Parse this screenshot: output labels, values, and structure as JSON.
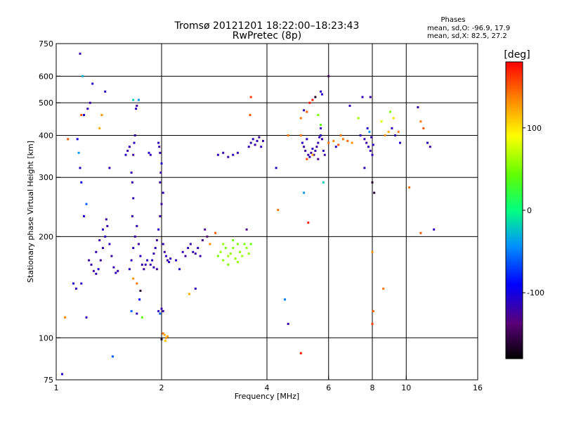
{
  "chart_data": {
    "type": "scatter",
    "title": "Tromsø 20121201 18:22:00–18:23:43",
    "subtitle": "RwPretec (8p)",
    "xlabel": "Frequency [MHz]",
    "ylabel": "Stationary phase Virtual Height [km]",
    "x_scale": "log",
    "y_scale": "log",
    "xlim": [
      1,
      16
    ],
    "ylim": [
      75,
      750
    ],
    "x_ticks": [
      1,
      2,
      4,
      6,
      8,
      10,
      16
    ],
    "x_tick_labels": [
      "1",
      "2",
      "4",
      "6",
      "8",
      "10",
      "16"
    ],
    "x_gridlines": [
      2,
      4,
      6,
      8,
      10
    ],
    "y_ticks": [
      75,
      100,
      200,
      300,
      400,
      500,
      600,
      750
    ],
    "y_tick_labels": [
      "75",
      "100",
      "200",
      "300",
      "400",
      "500",
      "600",
      "750"
    ],
    "y_gridlines": [
      100,
      200,
      300,
      400,
      500,
      600
    ],
    "grid": true,
    "stats": {
      "heading": "Phases",
      "line_o": "mean, sd,O: -96.9, 17.9",
      "line_x": "mean, sd,X:  82.5, 27.2"
    },
    "colorbar": {
      "unit": "[deg]",
      "range": [
        -180,
        180
      ],
      "ticks": [
        100,
        0,
        -100
      ],
      "tick_labels": [
        "100",
        "0",
        "-100"
      ],
      "colormap": "rainbow"
    },
    "points": [
      [
        1.24,
        170,
        -120
      ],
      [
        1.26,
        165,
        -118
      ],
      [
        1.28,
        158,
        -122
      ],
      [
        1.3,
        155,
        -115
      ],
      [
        1.32,
        160,
        -110
      ],
      [
        1.34,
        170,
        -125
      ],
      [
        1.36,
        185,
        -118
      ],
      [
        1.38,
        200,
        -112
      ],
      [
        1.4,
        215,
        -120
      ],
      [
        1.42,
        190,
        -116
      ],
      [
        1.44,
        175,
        -124
      ],
      [
        1.46,
        162,
        -119
      ],
      [
        1.48,
        156,
        -113
      ],
      [
        1.5,
        158,
        -121
      ],
      [
        1.3,
        180,
        -117
      ],
      [
        1.33,
        195,
        -123
      ],
      [
        1.36,
        210,
        -111
      ],
      [
        1.39,
        225,
        -119
      ],
      [
        1.2,
        230,
        -105
      ],
      [
        1.22,
        250,
        -60
      ],
      [
        1.18,
        290,
        -95
      ],
      [
        1.17,
        320,
        -110
      ],
      [
        1.16,
        355,
        -40
      ],
      [
        1.15,
        390,
        -100
      ],
      [
        1.2,
        460,
        -110
      ],
      [
        1.23,
        480,
        -115
      ],
      [
        1.25,
        500,
        -120
      ],
      [
        1.27,
        570,
        -108
      ],
      [
        1.19,
        600,
        -30
      ],
      [
        1.17,
        700,
        -118
      ],
      [
        1.33,
        420,
        120
      ],
      [
        1.35,
        460,
        130
      ],
      [
        1.38,
        540,
        -110
      ],
      [
        1.42,
        320,
        -115
      ],
      [
        1.12,
        145,
        -110
      ],
      [
        1.14,
        140,
        -118
      ],
      [
        1.18,
        145,
        -112
      ],
      [
        1.22,
        115,
        -115
      ],
      [
        1.45,
        88,
        -60
      ],
      [
        1.04,
        78,
        -110
      ],
      [
        1.06,
        115,
        135
      ],
      [
        1.08,
        390,
        150
      ],
      [
        1.18,
        460,
        150
      ],
      [
        1.62,
        160,
        -115
      ],
      [
        1.64,
        170,
        -118
      ],
      [
        1.66,
        185,
        -112
      ],
      [
        1.68,
        200,
        -121
      ],
      [
        1.7,
        215,
        -117
      ],
      [
        1.72,
        190,
        -125
      ],
      [
        1.74,
        175,
        -113
      ],
      [
        1.76,
        165,
        -119
      ],
      [
        1.78,
        160,
        -122
      ],
      [
        1.8,
        165,
        -116
      ],
      [
        1.82,
        170,
        -111
      ],
      [
        1.65,
        230,
        -118
      ],
      [
        1.66,
        260,
        -114
      ],
      [
        1.65,
        290,
        -120
      ],
      [
        1.64,
        310,
        -117
      ],
      [
        1.66,
        350,
        -123
      ],
      [
        1.67,
        380,
        -111
      ],
      [
        1.68,
        400,
        -119
      ],
      [
        1.69,
        480,
        -116
      ],
      [
        1.7,
        490,
        -124
      ],
      [
        1.66,
        510,
        -20
      ],
      [
        1.72,
        510,
        -40
      ],
      [
        1.62,
        370,
        -115
      ],
      [
        1.6,
        360,
        -120
      ],
      [
        1.58,
        350,
        -110
      ],
      [
        1.64,
        120,
        -60
      ],
      [
        1.7,
        118,
        -115
      ],
      [
        1.73,
        130,
        -90
      ],
      [
        1.76,
        115,
        40
      ],
      [
        1.66,
        150,
        130
      ],
      [
        1.7,
        145,
        140
      ],
      [
        1.74,
        138,
        -160
      ],
      [
        1.86,
        165,
        -118
      ],
      [
        1.88,
        170,
        -112
      ],
      [
        1.9,
        178,
        -120
      ],
      [
        1.92,
        185,
        -116
      ],
      [
        1.94,
        195,
        -124
      ],
      [
        1.96,
        210,
        -113
      ],
      [
        1.98,
        230,
        -119
      ],
      [
        2.0,
        250,
        -121
      ],
      [
        2.02,
        270,
        -115
      ],
      [
        1.98,
        290,
        -118
      ],
      [
        1.99,
        310,
        -122
      ],
      [
        2.0,
        330,
        -110
      ],
      [
        1.98,
        355,
        -117
      ],
      [
        1.97,
        370,
        -120
      ],
      [
        1.96,
        380,
        -114
      ],
      [
        2.02,
        190,
        -118
      ],
      [
        2.04,
        180,
        -123
      ],
      [
        2.06,
        175,
        -116
      ],
      [
        2.08,
        170,
        -120
      ],
      [
        2.1,
        168,
        -112
      ],
      [
        2.12,
        172,
        -118
      ],
      [
        1.94,
        160,
        -125
      ],
      [
        1.9,
        162,
        -117
      ],
      [
        1.86,
        350,
        -115
      ],
      [
        1.84,
        355,
        -110
      ],
      [
        1.96,
        120,
        -115
      ],
      [
        1.98,
        118,
        -60
      ],
      [
        2.0,
        122,
        -118
      ],
      [
        2.02,
        120,
        -120
      ],
      [
        2.04,
        102,
        120
      ],
      [
        2.06,
        100,
        130
      ],
      [
        2.08,
        101,
        125
      ],
      [
        2.05,
        98,
        110
      ],
      [
        2.02,
        103,
        140
      ],
      [
        2.0,
        99,
        -170
      ],
      [
        2.3,
        180,
        -118
      ],
      [
        2.34,
        175,
        -122
      ],
      [
        2.38,
        185,
        -112
      ],
      [
        2.42,
        190,
        -119
      ],
      [
        2.46,
        180,
        -116
      ],
      [
        2.5,
        178,
        -124
      ],
      [
        2.54,
        185,
        -113
      ],
      [
        2.58,
        175,
        -120
      ],
      [
        2.62,
        195,
        -125
      ],
      [
        2.66,
        210,
        -130
      ],
      [
        2.7,
        200,
        -140
      ],
      [
        2.2,
        170,
        -115
      ],
      [
        2.25,
        160,
        -110
      ],
      [
        2.5,
        140,
        -118
      ],
      [
        2.4,
        135,
        120
      ],
      [
        2.9,
        175,
        50
      ],
      [
        2.95,
        180,
        60
      ],
      [
        3.0,
        170,
        55
      ],
      [
        3.05,
        185,
        48
      ],
      [
        3.1,
        175,
        62
      ],
      [
        3.15,
        178,
        57
      ],
      [
        3.2,
        185,
        53
      ],
      [
        3.25,
        172,
        59
      ],
      [
        3.3,
        190,
        51
      ],
      [
        3.35,
        180,
        56
      ],
      [
        3.4,
        175,
        60
      ],
      [
        3.45,
        190,
        49
      ],
      [
        3.5,
        185,
        54
      ],
      [
        3.55,
        178,
        58
      ],
      [
        3.6,
        190,
        45
      ],
      [
        3.0,
        190,
        58
      ],
      [
        3.1,
        165,
        52
      ],
      [
        3.2,
        195,
        47
      ],
      [
        3.3,
        168,
        61
      ],
      [
        2.85,
        205,
        150
      ],
      [
        2.75,
        190,
        130
      ],
      [
        3.5,
        210,
        -130
      ],
      [
        3.55,
        370,
        -115
      ],
      [
        3.6,
        380,
        -118
      ],
      [
        3.65,
        390,
        -112
      ],
      [
        3.7,
        375,
        -120
      ],
      [
        3.75,
        385,
        -116
      ],
      [
        3.8,
        395,
        -124
      ],
      [
        3.85,
        370,
        -113
      ],
      [
        3.9,
        385,
        -119
      ],
      [
        3.58,
        460,
        150
      ],
      [
        3.6,
        520,
        160
      ],
      [
        2.9,
        350,
        -115
      ],
      [
        3.0,
        355,
        -118
      ],
      [
        3.1,
        345,
        -120
      ],
      [
        3.2,
        350,
        -112
      ],
      [
        3.3,
        355,
        -119
      ],
      [
        4.6,
        110,
        -120
      ],
      [
        4.5,
        130,
        -50
      ],
      [
        4.3,
        240,
        140
      ],
      [
        4.25,
        320,
        -110
      ],
      [
        4.6,
        400,
        140
      ],
      [
        5.0,
        400,
        140
      ],
      [
        5.05,
        380,
        -115
      ],
      [
        5.1,
        370,
        -118
      ],
      [
        5.15,
        360,
        -120
      ],
      [
        5.2,
        390,
        -112
      ],
      [
        5.25,
        350,
        -119
      ],
      [
        5.3,
        345,
        -116
      ],
      [
        5.35,
        355,
        -124
      ],
      [
        5.4,
        365,
        -113
      ],
      [
        5.45,
        350,
        -120
      ],
      [
        5.5,
        360,
        -118
      ],
      [
        5.55,
        370,
        -122
      ],
      [
        5.6,
        380,
        -115
      ],
      [
        5.65,
        395,
        -118
      ],
      [
        5.7,
        400,
        -110
      ],
      [
        5.75,
        390,
        -120
      ],
      [
        5.8,
        360,
        -115
      ],
      [
        5.85,
        350,
        -118
      ],
      [
        5.7,
        420,
        -115
      ],
      [
        5.75,
        530,
        -112
      ],
      [
        5.7,
        540,
        -110
      ],
      [
        5.0,
        450,
        140
      ],
      [
        5.1,
        475,
        -115
      ],
      [
        5.2,
        470,
        150
      ],
      [
        5.3,
        500,
        175
      ],
      [
        5.4,
        510,
        170
      ],
      [
        5.5,
        520,
        -170
      ],
      [
        5.6,
        460,
        50
      ],
      [
        5.7,
        430,
        40
      ],
      [
        5.8,
        290,
        -20
      ],
      [
        5.25,
        220,
        170
      ],
      [
        5.1,
        270,
        -40
      ],
      [
        5.0,
        90,
        175
      ],
      [
        5.2,
        340,
        155
      ],
      [
        5.4,
        350,
        120
      ],
      [
        5.6,
        340,
        -130
      ],
      [
        6.0,
        380,
        140
      ],
      [
        6.2,
        385,
        135
      ],
      [
        6.4,
        375,
        150
      ],
      [
        6.6,
        390,
        140
      ],
      [
        6.8,
        385,
        145
      ],
      [
        7.0,
        380,
        130
      ],
      [
        6.5,
        400,
        140
      ],
      [
        6.3,
        370,
        -110
      ],
      [
        6.0,
        600,
        -150
      ],
      [
        6.9,
        490,
        -115
      ],
      [
        7.5,
        520,
        -115
      ],
      [
        7.3,
        450,
        60
      ],
      [
        7.4,
        400,
        -115
      ],
      [
        7.6,
        390,
        -118
      ],
      [
        7.7,
        380,
        -120
      ],
      [
        7.8,
        370,
        -112
      ],
      [
        7.9,
        360,
        -119
      ],
      [
        8.0,
        350,
        -116
      ],
      [
        7.75,
        420,
        -110
      ],
      [
        7.85,
        410,
        -40
      ],
      [
        7.95,
        395,
        -118
      ],
      [
        8.05,
        375,
        -115
      ],
      [
        7.6,
        320,
        -115
      ],
      [
        7.9,
        520,
        -120
      ],
      [
        8.0,
        290,
        -165
      ],
      [
        8.1,
        270,
        -160
      ],
      [
        8.0,
        180,
        130
      ],
      [
        8.05,
        120,
        150
      ],
      [
        8.0,
        110,
        160
      ],
      [
        8.6,
        140,
        140
      ],
      [
        8.5,
        440,
        80
      ],
      [
        8.7,
        400,
        130
      ],
      [
        8.9,
        410,
        120
      ],
      [
        9.1,
        420,
        -115
      ],
      [
        9.3,
        400,
        -118
      ],
      [
        9.5,
        410,
        140
      ],
      [
        9.0,
        470,
        50
      ],
      [
        9.2,
        450,
        100
      ],
      [
        9.6,
        380,
        -110
      ],
      [
        10.8,
        485,
        -120
      ],
      [
        11.0,
        440,
        140
      ],
      [
        11.2,
        420,
        150
      ],
      [
        11.5,
        380,
        -115
      ],
      [
        11.7,
        370,
        -120
      ],
      [
        11.0,
        205,
        150
      ],
      [
        12.0,
        210,
        -115
      ],
      [
        10.2,
        280,
        140
      ]
    ]
  }
}
